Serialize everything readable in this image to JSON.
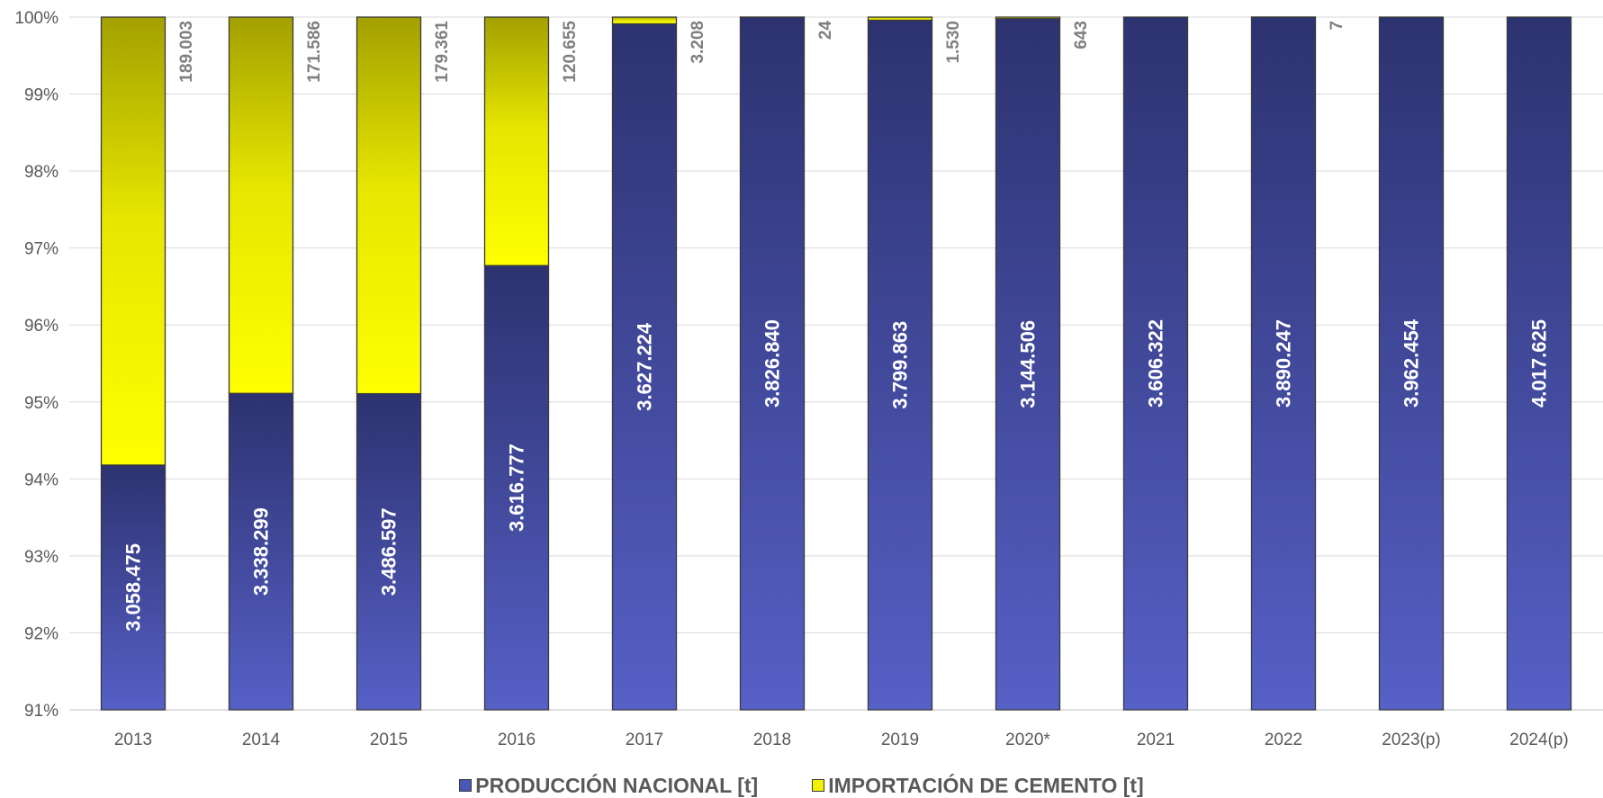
{
  "chart_data": {
    "type": "bar",
    "stacked": "percent",
    "categories": [
      "2013",
      "2014",
      "2015",
      "2016",
      "2017",
      "2018",
      "2019",
      "2020*",
      "2021",
      "2022",
      "2023(p)",
      "2024(p)"
    ],
    "series": [
      {
        "name": "PRODUCCIÓN NACIONAL [t]",
        "values": [
          3058475,
          3338299,
          3486597,
          3616777,
          3627224,
          3826840,
          3799863,
          3144506,
          3606322,
          3890247,
          3962454,
          4017625
        ],
        "labels": [
          "3.058.475",
          "3.338.299",
          "3.486.597",
          "3.616.777",
          "3.627.224",
          "3.826.840",
          "3.799.863",
          "3.144.506",
          "3.606.322",
          "3.890.247",
          "3.962.454",
          "4.017.625"
        ],
        "color": "#4a56b8"
      },
      {
        "name": "IMPORTACIÓN DE CEMENTO  [t]",
        "values": [
          189003,
          171586,
          179361,
          120655,
          3208,
          24,
          1530,
          643,
          0,
          7,
          0,
          0
        ],
        "labels": [
          "189.003",
          "171.586",
          "179.361",
          "120.655",
          "3.208",
          "24",
          "1.530",
          "643",
          "",
          "7",
          "",
          ""
        ],
        "color": "#f2f200"
      }
    ],
    "yaxis": {
      "min": 91,
      "max": 100,
      "step": 1,
      "tick_labels": [
        "91%",
        "92%",
        "93%",
        "94%",
        "95%",
        "96%",
        "97%",
        "98%",
        "99%",
        "100%"
      ]
    },
    "title": "",
    "xlabel": "",
    "ylabel": "",
    "grid": true,
    "legend_position": "bottom"
  },
  "legend": {
    "items": [
      {
        "label": "PRODUCCIÓN NACIONAL [t]",
        "color": "#4a56b8"
      },
      {
        "label": "IMPORTACIÓN DE CEMENTO  [t]",
        "color": "#f2f200"
      }
    ]
  }
}
